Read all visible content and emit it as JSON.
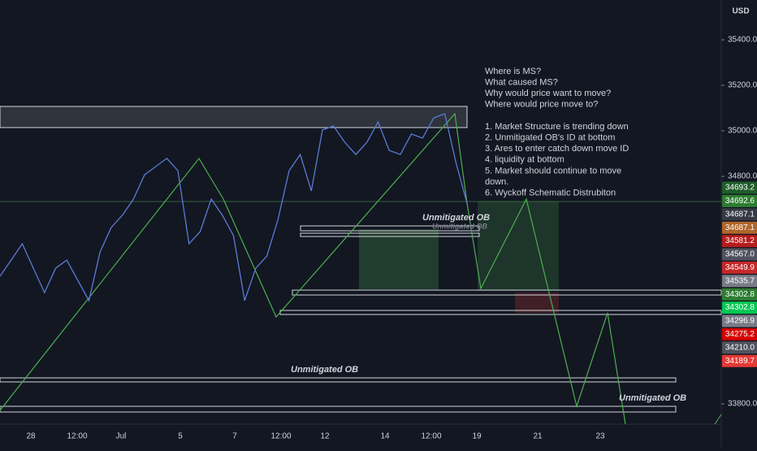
{
  "axis": {
    "currency": "USD",
    "ylim": [
      33718,
      35575
    ],
    "yticks": [
      {
        "value": 35400,
        "label": "35400.0"
      },
      {
        "value": 35200,
        "label": "35200.0"
      },
      {
        "value": 35000,
        "label": "35000.0"
      },
      {
        "value": 34800,
        "label": "34800.0"
      },
      {
        "value": 33800,
        "label": "33800.0"
      }
    ]
  },
  "xlabels": [
    "28",
    "12:00",
    "Jul",
    "5",
    "7",
    "12:00",
    "12",
    "14",
    "12:00",
    "19",
    "21",
    "23"
  ],
  "price": {
    "values": [
      34361,
      34432,
      34504,
      34396,
      34289,
      34396,
      34432,
      34343,
      34254,
      34468,
      34575,
      34629,
      34700,
      34807,
      34843,
      34879,
      34825,
      34504,
      34557,
      34700,
      34629,
      34539,
      34254,
      34396,
      34450,
      34611,
      34825,
      34896,
      34736,
      35004,
      35021,
      34950,
      34896,
      34950,
      35039,
      34914,
      34896,
      34986,
      34968,
      35057,
      35075,
      34861,
      34682
    ],
    "color": "#5b7bd5"
  },
  "price_labels": [
    {
      "label": "34693.2",
      "color": "#1e5e2a"
    },
    {
      "label": "34692.6",
      "color": "#2e7d32"
    },
    {
      "label": "34687.1",
      "color": "#363a45"
    },
    {
      "label": "34687.1",
      "color": "#b0662a"
    },
    {
      "label": "34581.2",
      "color": "#b71c1c"
    },
    {
      "label": "34567.0",
      "color": "#50535e"
    },
    {
      "label": "34549.9",
      "color": "#c62828"
    },
    {
      "label": "34535.7",
      "color": "#787b86"
    },
    {
      "label": "34302.8",
      "color": "#2e7d32"
    },
    {
      "label": "34302.8",
      "color": "#00c853"
    },
    {
      "label": "34296.9",
      "color": "#787b86"
    },
    {
      "label": "34275.2",
      "color": "#d50000"
    },
    {
      "label": "34210.0",
      "color": "#50535e"
    },
    {
      "label": "34189.7",
      "color": "#e53935"
    }
  ],
  "notes": {
    "questions": [
      "Where is MS?",
      "What caused MS?",
      "Why would price want to move?",
      "Where would price move to?"
    ],
    "answers": [
      "1. Market Structure is trending down",
      "2. Unmitigated OB's ID at bottom",
      "3. Ares to enter catch down move ID",
      "4. liquidity at bottom",
      "5. Market should continue to move",
      "down.",
      "6. Wyckoff Schematic Distrubiton"
    ]
  },
  "ob_labels": [
    "Unmitigated OB",
    "Unmitigated OB",
    "Unmitigated OB",
    "Unmitigated OB"
  ]
}
